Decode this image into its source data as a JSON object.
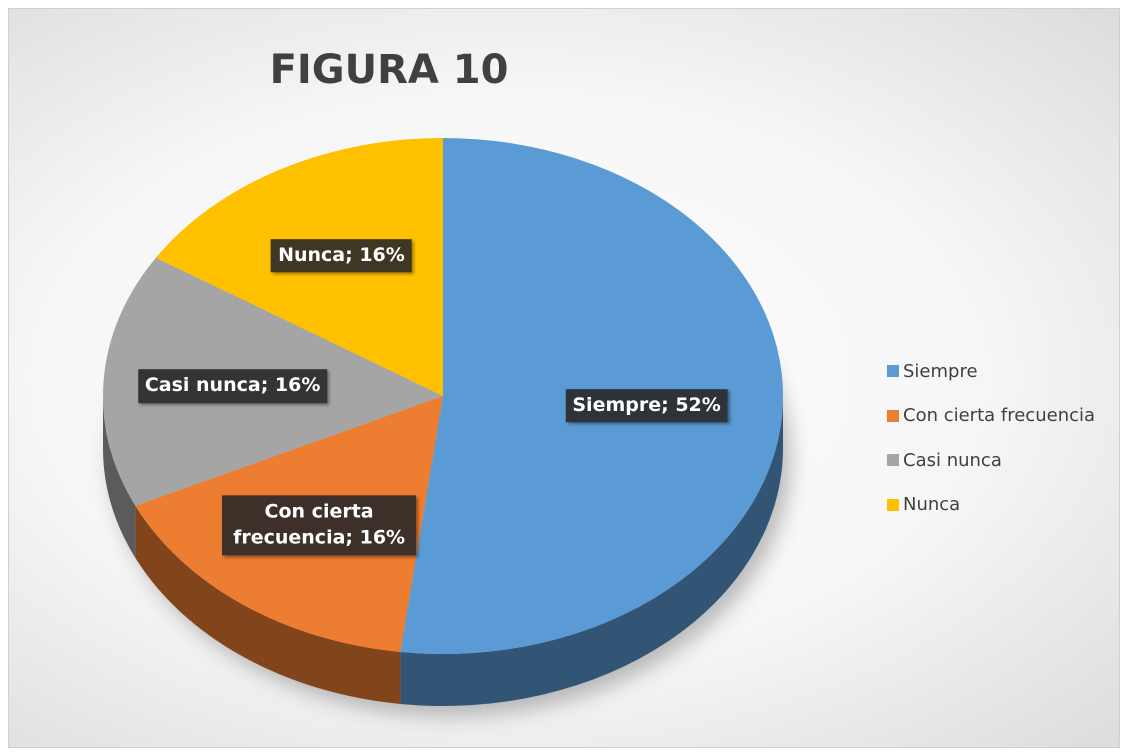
{
  "chart_data": {
    "type": "pie",
    "title": "FIGURA 10",
    "categories": [
      "Siempre",
      "Con cierta frecuencia",
      "Casi nunca",
      "Nunca"
    ],
    "values": [
      52,
      16,
      16,
      16
    ],
    "value_labels": [
      "Siempre; 52%",
      "Con cierta frecuencia; 16%",
      "Casi nunca; 16%",
      "Nunca; 16%"
    ],
    "colors": [
      "#5b9bd5",
      "#ed7d31",
      "#a5a5a5",
      "#ffc000"
    ],
    "legend": "right"
  }
}
